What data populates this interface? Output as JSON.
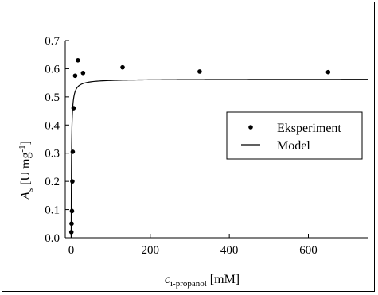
{
  "chart_data": {
    "type": "scatter",
    "xlim": [
      -15,
      750
    ],
    "ylim": [
      0,
      0.7
    ],
    "x_ticks": [
      0,
      200,
      400,
      600
    ],
    "x_tick_labels": [
      "0",
      "200",
      "400",
      "600"
    ],
    "y_ticks": [
      0.0,
      0.1,
      0.2,
      0.3,
      0.4,
      0.5,
      0.6,
      0.7
    ],
    "y_tick_labels": [
      "0.0",
      "0.1",
      "0.2",
      "0.3",
      "0.4",
      "0.5",
      "0.6",
      "0.7"
    ],
    "xlabel": {
      "main": "c",
      "sub": "i-propanol",
      "unit": " [mM]"
    },
    "ylabel": {
      "main": "A",
      "sub": "s",
      "unit_pre": " [U mg",
      "unit_sup": "-1",
      "unit_post": "]"
    },
    "grid": false,
    "legend": {
      "placement": "right-middle",
      "entries": [
        {
          "label": "Eksperiment",
          "marker": "dot"
        },
        {
          "label": "Model",
          "marker": "line"
        }
      ]
    },
    "series": [
      {
        "name": "Eksperiment",
        "kind": "points",
        "color": "#000000",
        "x": [
          0.5,
          1,
          2,
          3,
          4,
          6,
          10,
          17,
          30,
          130,
          325,
          650
        ],
        "y": [
          0.02,
          0.05,
          0.095,
          0.2,
          0.305,
          0.46,
          0.575,
          0.63,
          0.585,
          0.605,
          0.59,
          0.588
        ]
      },
      {
        "name": "Model",
        "kind": "line",
        "color": "#000000",
        "model": {
          "vmax": 0.563,
          "km": 0.85
        }
      }
    ]
  }
}
